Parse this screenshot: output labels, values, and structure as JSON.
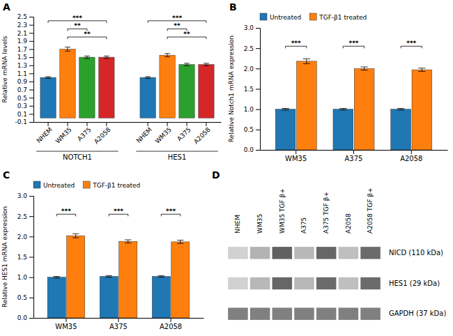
{
  "chart_data": [
    {
      "type": "bar",
      "title": "A",
      "ylabel": "Relative mRNA levels",
      "categories": [
        "NHEM",
        "WM35",
        "A375",
        "A2058"
      ],
      "series": [
        {
          "name": "NOTCH1",
          "values": [
            1.0,
            1.7,
            1.5,
            1.5
          ],
          "errors": [
            0.02,
            0.05,
            0.03,
            0.03
          ]
        },
        {
          "name": "HES1",
          "values": [
            1.0,
            1.55,
            1.32,
            1.32
          ],
          "errors": [
            0.02,
            0.04,
            0.03,
            0.03
          ]
        }
      ],
      "ylim": [
        -0.1,
        2.5
      ],
      "yticks": [
        -0.1,
        0.1,
        0.3,
        0.5,
        0.7,
        0.9,
        1.1,
        1.3,
        1.5,
        1.7,
        1.9,
        2.1,
        2.3,
        2.5
      ],
      "annotations": [
        {
          "text": "***",
          "series": "NOTCH1",
          "x": [
            "NHEM",
            "A2058"
          ],
          "y": 2.4
        },
        {
          "text": "**",
          "series": "NOTCH1",
          "x": [
            "WM35",
            "A375"
          ],
          "y": 2.2
        },
        {
          "text": "**",
          "series": "NOTCH1",
          "x": [
            "WM35",
            "A2058"
          ],
          "y": 2.0
        },
        {
          "text": "***",
          "series": "HES1",
          "x": [
            "NHEM",
            "A2058"
          ],
          "y": 2.4
        },
        {
          "text": "**",
          "series": "HES1",
          "x": [
            "WM35",
            "A375"
          ],
          "y": 2.2
        },
        {
          "text": "**",
          "series": "HES1",
          "x": [
            "WM35",
            "A2058"
          ],
          "y": 2.0
        }
      ]
    },
    {
      "type": "bar",
      "title": "B",
      "ylabel": "Relative Notch1 mRNA expression",
      "categories": [
        "WM35",
        "A375",
        "A2058"
      ],
      "series": [
        {
          "name": "Untreated",
          "values": [
            1.0,
            1.0,
            1.0
          ],
          "errors": [
            0.02,
            0.02,
            0.02
          ]
        },
        {
          "name": "TGF-β1 treated",
          "values": [
            2.18,
            2.0,
            1.97
          ],
          "errors": [
            0.06,
            0.04,
            0.04
          ]
        }
      ],
      "ylim": [
        0.0,
        3.0
      ],
      "yticks": [
        {
          "value": 0.0,
          "label": "0.0"
        },
        0.5,
        {
          "value": 1.0,
          "label": "1.0"
        },
        1.5,
        {
          "value": 2.0,
          "label": "2.0"
        },
        2.5,
        {
          "value": 3.0,
          "label": "3.0"
        }
      ],
      "legend": "upper left",
      "annotations": [
        {
          "text": "***",
          "x": "WM35",
          "y": 2.55
        },
        {
          "text": "***",
          "x": "A375",
          "y": 2.55
        },
        {
          "text": "***",
          "x": "A2058",
          "y": 2.55
        }
      ]
    },
    {
      "type": "bar",
      "title": "C",
      "ylabel": "Relative HES1 mRNA expression",
      "categories": [
        "WM35",
        "A375",
        "A2058"
      ],
      "series": [
        {
          "name": "Untreated",
          "values": [
            1.0,
            1.02,
            1.02
          ],
          "errors": [
            0.02,
            0.02,
            0.02
          ]
        },
        {
          "name": "TGF-β1 treated",
          "values": [
            2.02,
            1.88,
            1.87
          ],
          "errors": [
            0.05,
            0.04,
            0.04
          ]
        }
      ],
      "ylim": [
        0.0,
        3.0
      ],
      "yticks": [
        {
          "value": 0.0,
          "label": "0.0"
        },
        0.5,
        {
          "value": 1.0,
          "label": "1.0"
        },
        1.5,
        {
          "value": 2.0,
          "label": "2.0"
        },
        2.5,
        {
          "value": 3.0,
          "label": "3.0"
        }
      ],
      "legend": "upper left",
      "annotations": [
        {
          "text": "***",
          "x": "WM35",
          "y": 2.55
        },
        {
          "text": "***",
          "x": "A375",
          "y": 2.55
        },
        {
          "text": "***",
          "x": "A2058",
          "y": 2.55
        }
      ]
    },
    {
      "type": "heatmap",
      "title": "D",
      "categories": [
        "NHEM",
        "WM35",
        "WM35 TGF β+",
        "A375",
        "A375 TGF β+",
        "A2058",
        "A2058 TGF β+"
      ],
      "series": [
        {
          "name": "NICD (110 kDa)",
          "values": [
            0.82,
            0.7,
            0.38,
            0.72,
            0.4,
            0.75,
            0.42
          ]
        },
        {
          "name": "HES1 (29 kDa)",
          "values": [
            0.82,
            0.72,
            0.4,
            0.72,
            0.42,
            0.75,
            0.42
          ]
        },
        {
          "name": "GAPDH (37 kDa)",
          "values": [
            0.5,
            0.5,
            0.5,
            0.5,
            0.5,
            0.5,
            0.5
          ]
        }
      ]
    }
  ]
}
